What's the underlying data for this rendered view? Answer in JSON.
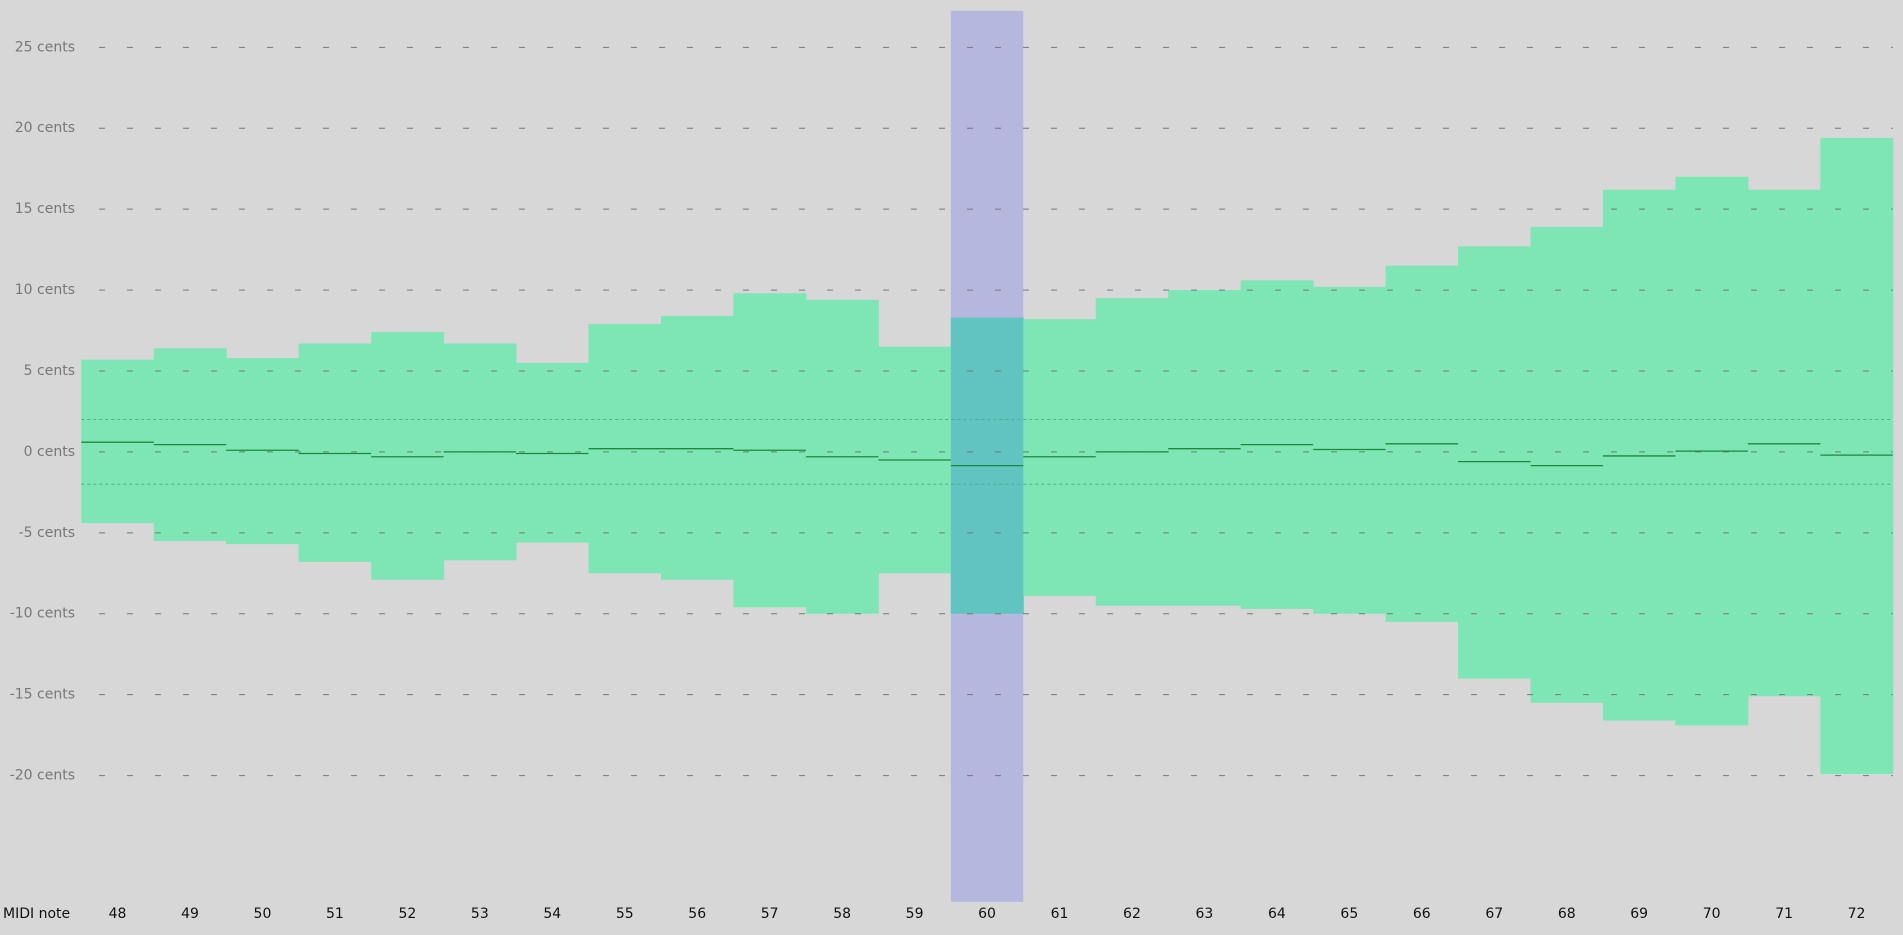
{
  "chart_data": {
    "type": "range",
    "x_label": "MIDI note",
    "categories": [
      48,
      49,
      50,
      51,
      52,
      53,
      54,
      55,
      56,
      57,
      58,
      59,
      60,
      61,
      62,
      63,
      64,
      65,
      66,
      67,
      68,
      69,
      70,
      71,
      72
    ],
    "upper": [
      5.7,
      6.4,
      5.8,
      6.7,
      7.4,
      6.7,
      5.5,
      7.9,
      8.4,
      9.8,
      9.4,
      6.5,
      8.3,
      8.2,
      9.5,
      10.0,
      10.6,
      10.2,
      11.5,
      12.7,
      13.9,
      16.2,
      17.0,
      16.2,
      19.4
    ],
    "lower": [
      -4.4,
      -5.5,
      -5.7,
      -6.8,
      -7.9,
      -6.7,
      -5.6,
      -7.5,
      -7.9,
      -9.6,
      -10.0,
      -7.5,
      -10.0,
      -8.9,
      -9.5,
      -9.5,
      -9.7,
      -10.0,
      -10.5,
      -14.0,
      -15.5,
      -16.6,
      -16.9,
      -15.1,
      -19.9
    ],
    "values": [
      0.6,
      0.45,
      0.1,
      -0.1,
      -0.3,
      0,
      -0.1,
      0.2,
      0.2,
      0.1,
      -0.3,
      -0.5,
      -0.85,
      -0.3,
      0,
      0.2,
      0.45,
      0.15,
      0.5,
      -0.6,
      -0.85,
      -0.25,
      0.05,
      0.5,
      -0.2
    ],
    "color": "#7de6b4",
    "line_color": "#1a8a3a",
    "highlight": 60,
    "highlight_color": "#b6b7de",
    "highlight_overlap_color": "#60c4c1",
    "reference_lines": [
      2,
      -2
    ],
    "ylim": [
      -27.8,
      27.25
    ],
    "yticks": [
      {
        "value": -20,
        "label": "-20 cents"
      },
      {
        "value": -15,
        "label": "-15 cents"
      },
      {
        "value": -10,
        "label": "-10 cents"
      },
      {
        "value": -5,
        "label": "-5 cents"
      },
      {
        "value": 0,
        "label": "0 cents"
      },
      {
        "value": 5,
        "label": "5 cents"
      },
      {
        "value": 10,
        "label": "10 cents"
      },
      {
        "value": 15,
        "label": "15 cents"
      },
      {
        "value": 20,
        "label": "20 cents"
      },
      {
        "value": 25,
        "label": "25 cents"
      }
    ],
    "grid": true
  }
}
